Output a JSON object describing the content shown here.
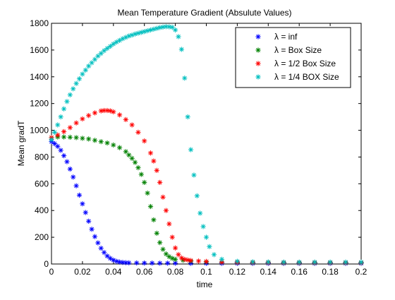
{
  "chart_data": {
    "type": "scatter",
    "title": "Mean Temperature Gradient (Absulute Values)",
    "xlabel": "time",
    "ylabel": "Mean gradT",
    "xlim": [
      0,
      0.2
    ],
    "ylim": [
      0,
      1800
    ],
    "xticks": [
      0,
      0.02,
      0.04,
      0.06,
      0.08,
      0.1,
      0.12,
      0.14,
      0.16,
      0.18,
      0.2
    ],
    "xtick_labels": [
      "0",
      "0.02",
      "0.04",
      "0.06",
      "0.08",
      "0.1",
      "0.12",
      "0.14",
      "0.16",
      "0.18",
      "0.2"
    ],
    "yticks": [
      0,
      200,
      400,
      600,
      800,
      1000,
      1200,
      1400,
      1600,
      1800
    ],
    "ytick_labels": [
      "0",
      "200",
      "400",
      "600",
      "800",
      "1000",
      "1200",
      "1400",
      "1600",
      "1800"
    ],
    "grid": false,
    "legend_position": "top-right",
    "marker": "*",
    "series": [
      {
        "name": "λ = inf",
        "color": "#0000ff",
        "x": [
          0,
          0.002,
          0.004,
          0.006,
          0.008,
          0.01,
          0.012,
          0.014,
          0.016,
          0.018,
          0.02,
          0.022,
          0.024,
          0.026,
          0.028,
          0.03,
          0.032,
          0.034,
          0.036,
          0.038,
          0.04,
          0.042,
          0.044,
          0.046,
          0.048,
          0.05,
          0.055,
          0.06,
          0.065,
          0.07,
          0.075,
          0.08,
          0.09,
          0.1,
          0.11,
          0.12,
          0.13,
          0.14,
          0.15,
          0.16,
          0.17,
          0.18,
          0.19,
          0.2
        ],
        "y": [
          915,
          900,
          880,
          850,
          810,
          765,
          710,
          650,
          585,
          515,
          450,
          385,
          320,
          260,
          205,
          158,
          118,
          86,
          60,
          42,
          29,
          20,
          15,
          12,
          10,
          9,
          8,
          7,
          7,
          6,
          6,
          6,
          5,
          5,
          5,
          5,
          5,
          5,
          5,
          5,
          5,
          5,
          5,
          5
        ]
      },
      {
        "name": "λ = Box Size",
        "color": "#008000",
        "x": [
          0,
          0.004,
          0.008,
          0.012,
          0.016,
          0.02,
          0.024,
          0.028,
          0.032,
          0.036,
          0.04,
          0.044,
          0.048,
          0.05,
          0.052,
          0.054,
          0.056,
          0.058,
          0.06,
          0.062,
          0.064,
          0.066,
          0.068,
          0.07,
          0.072,
          0.074,
          0.076,
          0.078,
          0.08,
          0.085,
          0.09,
          0.1,
          0.11,
          0.12,
          0.13,
          0.14,
          0.15,
          0.16,
          0.17,
          0.18,
          0.19,
          0.2
        ],
        "y": [
          945,
          950,
          950,
          948,
          945,
          940,
          935,
          925,
          915,
          905,
          890,
          870,
          840,
          815,
          790,
          760,
          720,
          670,
          610,
          530,
          430,
          330,
          230,
          160,
          110,
          75,
          55,
          42,
          35,
          28,
          22,
          16,
          13,
          11,
          10,
          10,
          9,
          9,
          9,
          9,
          9,
          9
        ]
      },
      {
        "name": "λ = 1/2 Box Size",
        "color": "#ff0000",
        "x": [
          0,
          0.004,
          0.008,
          0.012,
          0.016,
          0.02,
          0.024,
          0.028,
          0.032,
          0.034,
          0.036,
          0.038,
          0.04,
          0.044,
          0.048,
          0.052,
          0.056,
          0.06,
          0.064,
          0.066,
          0.068,
          0.07,
          0.072,
          0.074,
          0.076,
          0.078,
          0.08,
          0.082,
          0.084,
          0.086,
          0.088,
          0.09,
          0.095,
          0.1,
          0.11,
          0.12,
          0.13,
          0.14,
          0.15,
          0.16,
          0.17,
          0.18,
          0.19,
          0.2
        ],
        "y": [
          945,
          965,
          990,
          1020,
          1055,
          1085,
          1110,
          1130,
          1145,
          1148,
          1148,
          1145,
          1138,
          1115,
          1080,
          1040,
          985,
          920,
          830,
          770,
          700,
          610,
          500,
          400,
          300,
          200,
          120,
          70,
          45,
          35,
          30,
          26,
          22,
          19,
          15,
          13,
          12,
          11,
          11,
          11,
          11,
          11,
          11,
          11
        ]
      },
      {
        "name": "λ = 1/4 BOX Size",
        "color": "#00bfbf",
        "x": [
          0,
          0.002,
          0.004,
          0.006,
          0.008,
          0.01,
          0.012,
          0.014,
          0.016,
          0.018,
          0.02,
          0.022,
          0.024,
          0.026,
          0.028,
          0.03,
          0.032,
          0.034,
          0.036,
          0.038,
          0.04,
          0.042,
          0.044,
          0.046,
          0.048,
          0.05,
          0.052,
          0.054,
          0.056,
          0.058,
          0.06,
          0.062,
          0.064,
          0.066,
          0.068,
          0.07,
          0.072,
          0.074,
          0.076,
          0.078,
          0.08,
          0.082,
          0.084,
          0.086,
          0.088,
          0.09,
          0.092,
          0.094,
          0.096,
          0.098,
          0.1,
          0.102,
          0.105,
          0.11,
          0.12,
          0.13,
          0.14,
          0.15,
          0.16,
          0.17,
          0.18,
          0.19,
          0.2
        ],
        "y": [
          930,
          985,
          1040,
          1100,
          1160,
          1215,
          1265,
          1310,
          1350,
          1385,
          1420,
          1450,
          1480,
          1505,
          1530,
          1555,
          1575,
          1595,
          1612,
          1628,
          1645,
          1660,
          1672,
          1685,
          1695,
          1705,
          1712,
          1720,
          1726,
          1732,
          1738,
          1744,
          1750,
          1756,
          1762,
          1768,
          1772,
          1775,
          1774,
          1770,
          1750,
          1700,
          1605,
          1390,
          1100,
          855,
          665,
          510,
          380,
          280,
          200,
          130,
          70,
          35,
          20,
          16,
          15,
          14,
          14,
          14,
          14,
          14,
          14
        ]
      }
    ]
  }
}
